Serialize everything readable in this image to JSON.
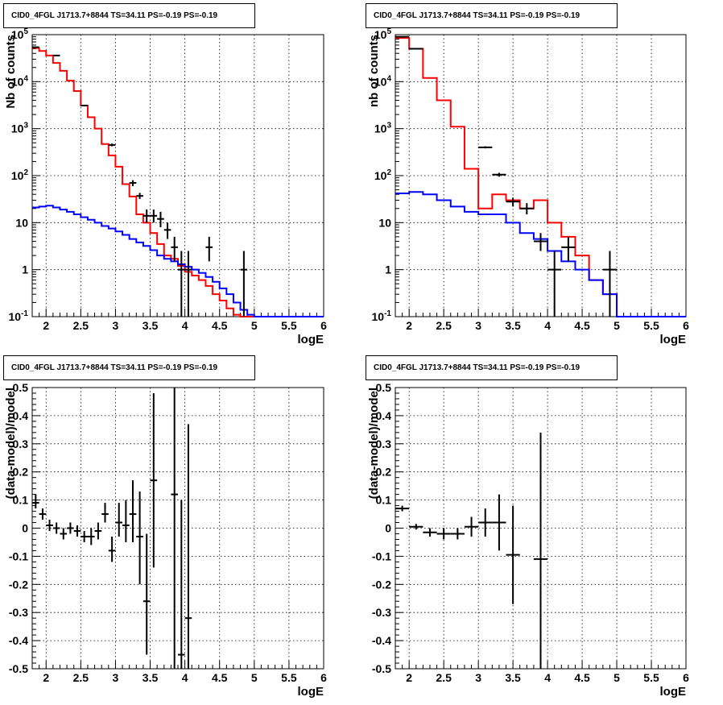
{
  "panels": [
    {
      "title": "CID0_4FGL J1713.7+8844 TS=34.11 PS=-0.19 PS=-0.19"
    },
    {
      "title": "CID0_4FGL J1713.7+8844 TS=34.11 PS=-0.19 PS=-0.19"
    },
    {
      "title": "CID0_4FGL J1713.7+8844 TS=34.11 PS=-0.19 PS=-0.19"
    },
    {
      "title": "CID0_4FGL J1713.7+8844 TS=34.11 PS=-0.19 PS=-0.19"
    }
  ],
  "colors": {
    "data": "#000000",
    "total_model": "#ff0000",
    "source_model": "#0000ff",
    "grid": "#000000"
  },
  "chart_data": [
    {
      "type": "line",
      "title": "CID0_4FGL J1713.7+8844 TS=34.11 PS=-0.19 PS=-0.19",
      "xlabel": "logE",
      "ylabel": "Nb of counts",
      "xlim": [
        1.8,
        6
      ],
      "ylim": [
        0.1,
        100000
      ],
      "yscale": "log",
      "grid": true,
      "xticks": [
        "2",
        "2.5",
        "3",
        "3.5",
        "4",
        "4.5",
        "5",
        "5.5",
        "6"
      ],
      "yticks": [
        {
          "v": 0.1,
          "t": "10^-1"
        },
        {
          "v": 1,
          "t": "1"
        },
        {
          "v": 10,
          "t": "10"
        },
        {
          "v": 100,
          "t": "10^2"
        },
        {
          "v": 1000,
          "t": "10^3"
        },
        {
          "v": 10000,
          "t": "10^4"
        },
        {
          "v": 100000,
          "t": "10^5"
        }
      ],
      "bin_edges": [
        1.8,
        1.9,
        2.0,
        2.1,
        2.2,
        2.3,
        2.4,
        2.5,
        2.6,
        2.7,
        2.8,
        2.9,
        3.0,
        3.1,
        3.2,
        3.3,
        3.4,
        3.5,
        3.6,
        3.7,
        3.8,
        3.9,
        4.0,
        4.1,
        4.2,
        4.3,
        4.4,
        4.5,
        4.6,
        4.7,
        4.8,
        4.9,
        5.0,
        5.1,
        5.2,
        5.3,
        5.4,
        5.5,
        5.6,
        5.7,
        5.8,
        5.9,
        6.0
      ],
      "series": [
        {
          "values": [
            52000,
            45000,
            36000,
            25000,
            17000,
            10500,
            6300,
            3100,
            1750,
            1000,
            470,
            270,
            155,
            66,
            36,
            15,
            10,
            6,
            3.5,
            2,
            1.7,
            1.2,
            0.9,
            0.75,
            0.6,
            0.45,
            0.3,
            0.22,
            0.15,
            0.11,
            0.1,
            0.1,
            0.1,
            0.1,
            0.1,
            0.1,
            0.1,
            0.1,
            0.1,
            0.1,
            0.1,
            0.1
          ],
          "color": "#ff0000"
        },
        {
          "values": [
            21,
            22,
            23,
            21,
            19,
            17,
            15,
            13,
            11.5,
            10,
            8.5,
            7.5,
            6.5,
            5.5,
            4.5,
            3.8,
            3.2,
            2.6,
            2,
            1.7,
            1.5,
            1.3,
            1.15,
            1,
            0.85,
            0.7,
            0.55,
            0.4,
            0.3,
            0.2,
            0.14,
            0.11,
            0.1,
            0.1,
            0.1,
            0.1,
            0.1,
            0.1,
            0.1,
            0.1,
            0.1,
            0.1
          ],
          "color": "#0000ff"
        }
      ],
      "points": [
        {
          "x": 1.85,
          "y": 54000,
          "ylo": 53000,
          "yhi": 55000,
          "xerr": 0.05
        },
        {
          "x": 2.15,
          "y": 36000,
          "ylo": 35500,
          "yhi": 36500,
          "xerr": 0.05
        },
        {
          "x": 2.55,
          "y": 3100,
          "ylo": 3000,
          "yhi": 3200,
          "xerr": 0.05
        },
        {
          "x": 2.95,
          "y": 450,
          "ylo": 420,
          "yhi": 480,
          "xerr": 0.05
        },
        {
          "x": 3.25,
          "y": 70,
          "ylo": 60,
          "yhi": 80,
          "xerr": 0.05
        },
        {
          "x": 3.35,
          "y": 37,
          "ylo": 32,
          "yhi": 43,
          "xerr": 0.05
        },
        {
          "x": 3.45,
          "y": 14,
          "ylo": 10,
          "yhi": 19,
          "xerr": 0.05
        },
        {
          "x": 3.55,
          "y": 14,
          "ylo": 10,
          "yhi": 19,
          "xerr": 0.05
        },
        {
          "x": 3.65,
          "y": 12,
          "ylo": 8,
          "yhi": 17,
          "xerr": 0.05
        },
        {
          "x": 3.75,
          "y": 7,
          "ylo": 4.5,
          "yhi": 10,
          "xerr": 0.05
        },
        {
          "x": 3.85,
          "y": 3,
          "ylo": 1.5,
          "yhi": 5,
          "xerr": 0.05
        },
        {
          "x": 3.95,
          "y": 1,
          "ylo": 0.1,
          "yhi": 2.5,
          "xerr": 0.05
        },
        {
          "x": 4.05,
          "y": 1,
          "ylo": 0.1,
          "yhi": 2.5,
          "xerr": 0.05
        },
        {
          "x": 4.35,
          "y": 3,
          "ylo": 1.5,
          "yhi": 5,
          "xerr": 0.05
        },
        {
          "x": 4.85,
          "y": 1,
          "ylo": 0.1,
          "yhi": 2.5,
          "xerr": 0.05
        }
      ]
    },
    {
      "type": "line",
      "title": "CID0_4FGL J1713.7+8844 TS=34.11 PS=-0.19 PS=-0.19",
      "xlabel": "logE",
      "ylabel": "nb of counts",
      "xlim": [
        1.8,
        6
      ],
      "ylim": [
        0.1,
        100000
      ],
      "yscale": "log",
      "grid": true,
      "xticks": [
        "2",
        "2.5",
        "3",
        "3.5",
        "4",
        "4.5",
        "5",
        "5.5",
        "6"
      ],
      "yticks": [
        {
          "v": 0.1,
          "t": "10^-1"
        },
        {
          "v": 1,
          "t": "1"
        },
        {
          "v": 10,
          "t": "10"
        },
        {
          "v": 100,
          "t": "10^2"
        },
        {
          "v": 1000,
          "t": "10^3"
        },
        {
          "v": 10000,
          "t": "10^4"
        },
        {
          "v": 100000,
          "t": "10^5"
        }
      ],
      "bin_edges": [
        1.8,
        2.0,
        2.2,
        2.4,
        2.6,
        2.8,
        3.0,
        3.2,
        3.4,
        3.6,
        3.8,
        4.0,
        4.2,
        4.4,
        4.6,
        4.8,
        5.0,
        5.2,
        5.4,
        5.6,
        5.8,
        6.0
      ],
      "series": [
        {
          "values": [
            85000,
            50000,
            12000,
            4000,
            1100,
            140,
            20,
            40,
            30,
            20,
            30,
            10,
            5,
            2,
            0.6,
            0.3,
            0.1,
            0.1,
            0.1,
            0.1,
            0.1
          ],
          "color": "#ff0000"
        },
        {
          "values": [
            42,
            45,
            40,
            30,
            22,
            17,
            15,
            15,
            10,
            6,
            4.5,
            2.5,
            1.5,
            1,
            0.6,
            0.3,
            0.1,
            0.1,
            0.1,
            0.1,
            0.1
          ],
          "color": "#0000ff"
        }
      ],
      "points": [
        {
          "x": 1.9,
          "y": 90000,
          "ylo": 89000,
          "yhi": 91000,
          "xerr": 0.1
        },
        {
          "x": 2.1,
          "y": 50000,
          "ylo": 49500,
          "yhi": 50500,
          "xerr": 0.1
        },
        {
          "x": 3.1,
          "y": 400,
          "ylo": 380,
          "yhi": 420,
          "xerr": 0.1
        },
        {
          "x": 3.3,
          "y": 105,
          "ylo": 95,
          "yhi": 115,
          "xerr": 0.1
        },
        {
          "x": 3.5,
          "y": 28,
          "ylo": 22,
          "yhi": 34,
          "xerr": 0.1
        },
        {
          "x": 3.7,
          "y": 20,
          "ylo": 15,
          "yhi": 26,
          "xerr": 0.1
        },
        {
          "x": 3.9,
          "y": 4,
          "ylo": 2.5,
          "yhi": 6,
          "xerr": 0.1
        },
        {
          "x": 4.1,
          "y": 1,
          "ylo": 0.1,
          "yhi": 2.5,
          "xerr": 0.1
        },
        {
          "x": 4.3,
          "y": 3,
          "ylo": 1.5,
          "yhi": 5,
          "xerr": 0.1
        },
        {
          "x": 4.9,
          "y": 1,
          "ylo": 0.1,
          "yhi": 2.5,
          "xerr": 0.1
        }
      ]
    },
    {
      "type": "scatter",
      "title": "CID0_4FGL J1713.7+8844 TS=34.11 PS=-0.19 PS=-0.19",
      "xlabel": "logE",
      "ylabel": "(data-model)/model",
      "xlim": [
        1.8,
        6
      ],
      "ylim": [
        -0.5,
        0.5
      ],
      "yscale": "linear",
      "grid": true,
      "xticks": [
        "2",
        "2.5",
        "3",
        "3.5",
        "4",
        "4.5",
        "5",
        "5.5",
        "6"
      ],
      "yticks": [
        {
          "v": -0.5,
          "t": "-0.5"
        },
        {
          "v": -0.4,
          "t": "-0.4"
        },
        {
          "v": -0.3,
          "t": "-0.3"
        },
        {
          "v": -0.2,
          "t": "-0.2"
        },
        {
          "v": -0.1,
          "t": "-0.1"
        },
        {
          "v": 0,
          "t": "0"
        },
        {
          "v": 0.1,
          "t": "0.1"
        },
        {
          "v": 0.2,
          "t": "0.2"
        },
        {
          "v": 0.3,
          "t": "0.3"
        },
        {
          "v": 0.4,
          "t": "0.4"
        },
        {
          "v": 0.5,
          "t": "0.5"
        }
      ],
      "series": [],
      "points": [
        {
          "x": 1.85,
          "y": 0.09,
          "ylo": 0.07,
          "yhi": 0.12,
          "xerr": 0.05
        },
        {
          "x": 1.95,
          "y": 0.05,
          "ylo": 0.03,
          "yhi": 0.07,
          "xerr": 0.05
        },
        {
          "x": 2.05,
          "y": 0.01,
          "ylo": -0.01,
          "yhi": 0.03,
          "xerr": 0.05
        },
        {
          "x": 2.15,
          "y": 0.0,
          "ylo": -0.02,
          "yhi": 0.02,
          "xerr": 0.05
        },
        {
          "x": 2.25,
          "y": -0.02,
          "ylo": -0.04,
          "yhi": 0.0,
          "xerr": 0.05
        },
        {
          "x": 2.35,
          "y": 0.0,
          "ylo": -0.02,
          "yhi": 0.02,
          "xerr": 0.05
        },
        {
          "x": 2.45,
          "y": -0.01,
          "ylo": -0.03,
          "yhi": 0.01,
          "xerr": 0.05
        },
        {
          "x": 2.55,
          "y": -0.03,
          "ylo": -0.05,
          "yhi": -0.01,
          "xerr": 0.05
        },
        {
          "x": 2.65,
          "y": -0.03,
          "ylo": -0.06,
          "yhi": 0.0,
          "xerr": 0.05
        },
        {
          "x": 2.75,
          "y": -0.01,
          "ylo": -0.04,
          "yhi": 0.02,
          "xerr": 0.05
        },
        {
          "x": 2.85,
          "y": 0.05,
          "ylo": 0.02,
          "yhi": 0.09,
          "xerr": 0.05
        },
        {
          "x": 2.95,
          "y": -0.08,
          "ylo": -0.12,
          "yhi": -0.03,
          "xerr": 0.05
        },
        {
          "x": 3.05,
          "y": 0.02,
          "ylo": -0.03,
          "yhi": 0.09,
          "xerr": 0.05
        },
        {
          "x": 3.15,
          "y": 0.01,
          "ylo": -0.05,
          "yhi": 0.1,
          "xerr": 0.05
        },
        {
          "x": 3.25,
          "y": 0.05,
          "ylo": -0.05,
          "yhi": 0.17,
          "xerr": 0.05
        },
        {
          "x": 3.35,
          "y": -0.03,
          "ylo": -0.2,
          "yhi": 0.13,
          "xerr": 0.05
        },
        {
          "x": 3.45,
          "y": -0.26,
          "ylo": -0.45,
          "yhi": -0.02,
          "xerr": 0.05
        },
        {
          "x": 3.55,
          "y": 0.17,
          "ylo": -0.14,
          "yhi": 0.48,
          "xerr": 0.05
        },
        {
          "x": 3.85,
          "y": 0.12,
          "ylo": -0.5,
          "yhi": 0.5,
          "xerr": 0.05
        },
        {
          "x": 3.95,
          "y": -0.45,
          "ylo": -0.5,
          "yhi": 0.1,
          "xerr": 0.05
        },
        {
          "x": 4.05,
          "y": -0.32,
          "ylo": -0.5,
          "yhi": 0.37,
          "xerr": 0.05
        }
      ]
    },
    {
      "type": "scatter",
      "title": "CID0_4FGL J1713.7+8844 TS=34.11 PS=-0.19 PS=-0.19",
      "xlabel": "logE",
      "ylabel": "(data-model)/model",
      "xlim": [
        1.8,
        6
      ],
      "ylim": [
        -0.5,
        0.5
      ],
      "yscale": "linear",
      "grid": true,
      "xticks": [
        "2",
        "2.5",
        "3",
        "3.5",
        "4",
        "4.5",
        "5",
        "5.5",
        "6"
      ],
      "yticks": [
        {
          "v": -0.5,
          "t": "-0.5"
        },
        {
          "v": -0.4,
          "t": "-0.4"
        },
        {
          "v": -0.3,
          "t": "-0.3"
        },
        {
          "v": -0.2,
          "t": "-0.2"
        },
        {
          "v": -0.1,
          "t": "-0.1"
        },
        {
          "v": 0,
          "t": "0"
        },
        {
          "v": 0.1,
          "t": "0.1"
        },
        {
          "v": 0.2,
          "t": "0.2"
        },
        {
          "v": 0.3,
          "t": "0.3"
        },
        {
          "v": 0.4,
          "t": "0.4"
        },
        {
          "v": 0.5,
          "t": "0.5"
        }
      ],
      "series": [],
      "points": [
        {
          "x": 1.9,
          "y": 0.07,
          "ylo": 0.06,
          "yhi": 0.08,
          "xerr": 0.1
        },
        {
          "x": 2.1,
          "y": 0.005,
          "ylo": -0.005,
          "yhi": 0.015,
          "xerr": 0.1
        },
        {
          "x": 2.3,
          "y": -0.015,
          "ylo": -0.03,
          "yhi": 0.0,
          "xerr": 0.1
        },
        {
          "x": 2.5,
          "y": -0.02,
          "ylo": -0.04,
          "yhi": 0.0,
          "xerr": 0.1
        },
        {
          "x": 2.7,
          "y": -0.02,
          "ylo": -0.04,
          "yhi": 0.0,
          "xerr": 0.1
        },
        {
          "x": 2.9,
          "y": 0.005,
          "ylo": -0.03,
          "yhi": 0.04,
          "xerr": 0.1
        },
        {
          "x": 3.1,
          "y": 0.02,
          "ylo": -0.03,
          "yhi": 0.07,
          "xerr": 0.1
        },
        {
          "x": 3.3,
          "y": 0.02,
          "ylo": -0.08,
          "yhi": 0.12,
          "xerr": 0.1
        },
        {
          "x": 3.5,
          "y": -0.095,
          "ylo": -0.27,
          "yhi": 0.08,
          "xerr": 0.1
        },
        {
          "x": 3.9,
          "y": -0.11,
          "ylo": -0.5,
          "yhi": 0.34,
          "xerr": 0.1
        }
      ]
    }
  ]
}
